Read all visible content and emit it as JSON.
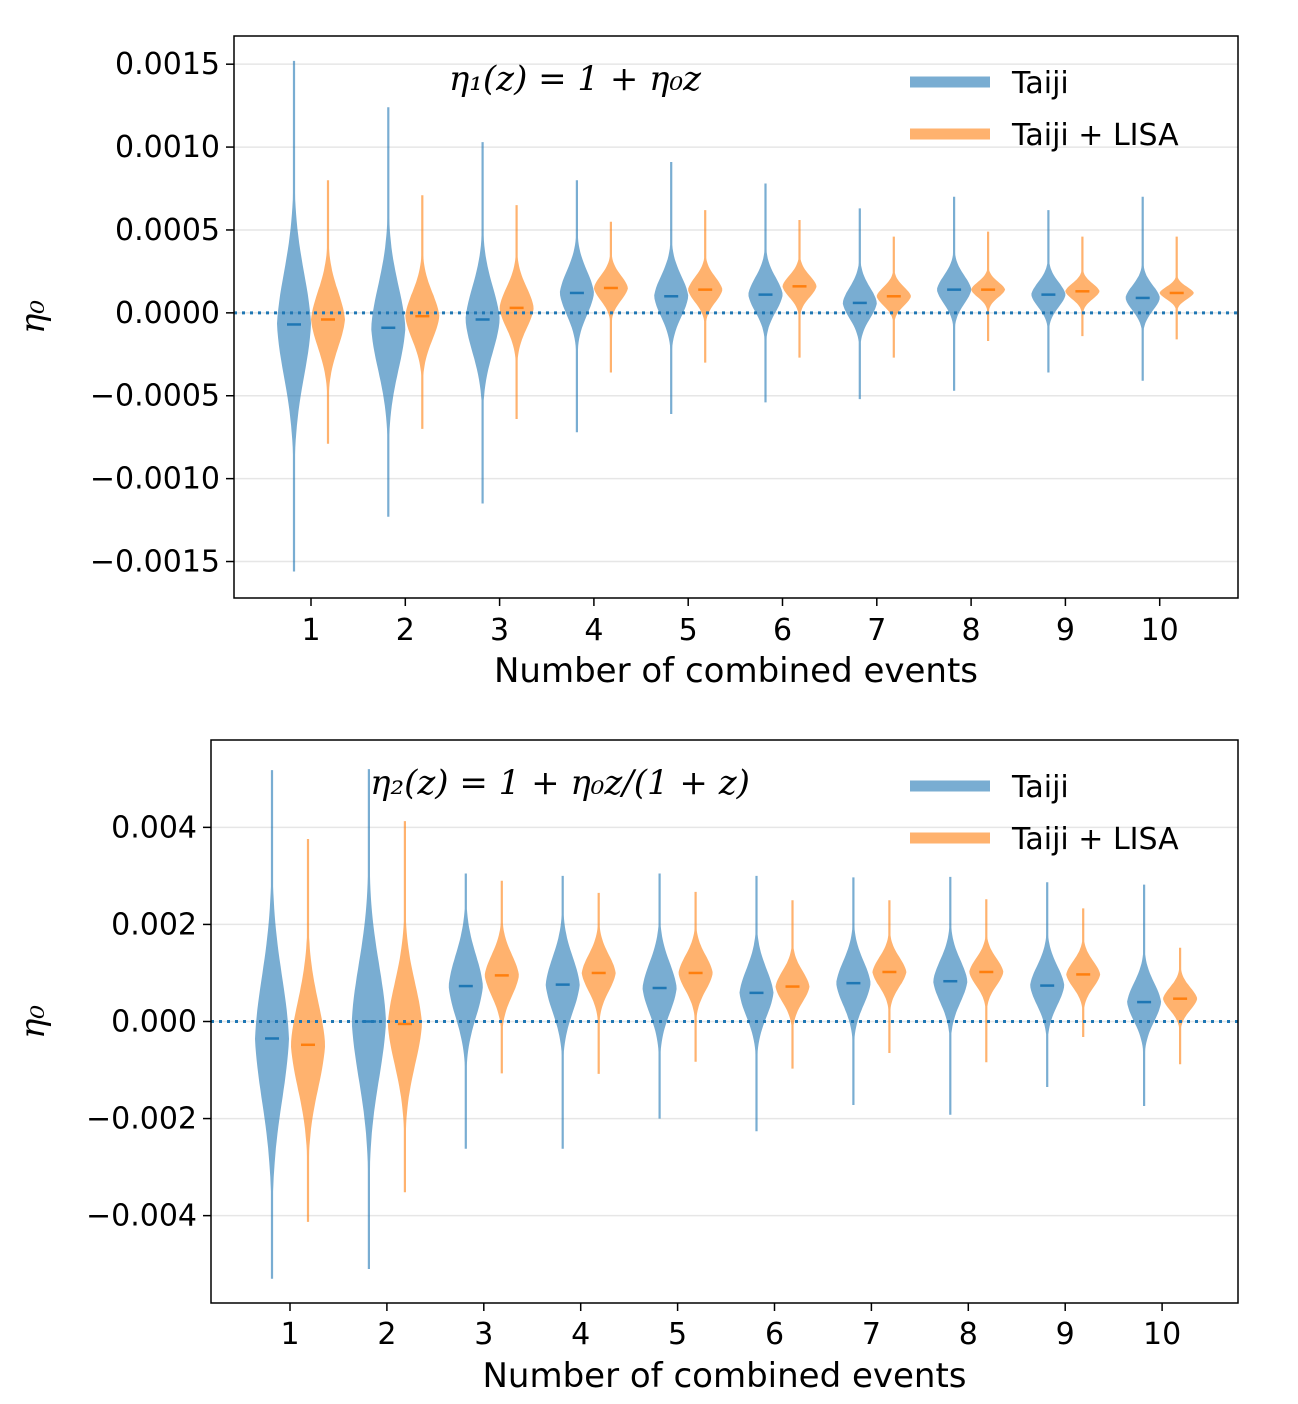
{
  "chart_data": [
    {
      "type": "violin",
      "annotation": "η₁(z) = 1 + η₀z",
      "xlabel": "Number of combined events",
      "ylabel": "η₀",
      "categories": [
        "1",
        "2",
        "3",
        "4",
        "5",
        "6",
        "7",
        "8",
        "9",
        "10"
      ],
      "ylim": [
        -0.00172,
        0.00167
      ],
      "yticks": [
        0.0015,
        0.001,
        0.0005,
        0.0,
        -0.0005,
        -0.001,
        -0.0015
      ],
      "ytick_labels": [
        "0.0015",
        "0.0010",
        "0.0005",
        "0.0000",
        "−0.0005",
        "−0.0010",
        "−0.0015"
      ],
      "grid": "horizontal",
      "reference_line": 0,
      "legend_position": "top-right",
      "series": [
        {
          "name": "Taiji",
          "color": "#1f77b4",
          "median": [
            -7e-05,
            -9e-05,
            -4e-05,
            0.00012,
            0.0001,
            0.00011,
            6e-05,
            0.00014,
            0.00011,
            9e-05
          ],
          "min": [
            -0.00156,
            -0.00123,
            -0.00115,
            -0.00072,
            -0.00061,
            -0.00054,
            -0.00052,
            -0.00047,
            -0.00036,
            -0.00041
          ],
          "max": [
            0.00152,
            0.00124,
            0.00103,
            0.0008,
            0.00091,
            0.00078,
            0.00063,
            0.0007,
            0.00062,
            0.0007
          ],
          "spread": [
            0.00033,
            0.00027,
            0.00021,
            0.00014,
            0.00013,
            0.00011,
            0.0001,
            9e-05,
            8e-05,
            8e-05
          ]
        },
        {
          "name": "Taiji + LISA",
          "color": "#ff7f0e",
          "median": [
            -4e-05,
            -2e-05,
            3e-05,
            0.00015,
            0.00014,
            0.00016,
            0.0001,
            0.00014,
            0.00013,
            0.00012
          ],
          "min": [
            -0.00079,
            -0.0007,
            -0.00064,
            -0.00036,
            -0.0003,
            -0.00027,
            -0.00027,
            -0.00017,
            -0.00014,
            -0.00016
          ],
          "max": [
            0.0008,
            0.00071,
            0.00065,
            0.00055,
            0.00062,
            0.00056,
            0.00046,
            0.00049,
            0.00046,
            0.00046
          ],
          "spread": [
            0.00018,
            0.00015,
            0.00013,
            8e-05,
            8e-05,
            7e-05,
            6e-05,
            5e-05,
            5e-05,
            4e-05
          ]
        }
      ]
    },
    {
      "type": "violin",
      "annotation": "η₂(z) = 1 + η₀z/(1 + z)",
      "xlabel": "Number of combined events",
      "ylabel": "η₀",
      "categories": [
        "1",
        "2",
        "3",
        "4",
        "5",
        "6",
        "7",
        "8",
        "9",
        "10"
      ],
      "ylim": [
        -0.0058,
        0.0058
      ],
      "yticks": [
        0.004,
        0.002,
        0.0,
        -0.002,
        -0.004
      ],
      "ytick_labels": [
        "0.004",
        "0.002",
        "0.000",
        "−0.002",
        "−0.004"
      ],
      "grid": "horizontal",
      "reference_line": 0,
      "legend_position": "top-right",
      "series": [
        {
          "name": "Taiji",
          "color": "#1f77b4",
          "median": [
            -0.00035,
            0.0,
            0.00073,
            0.00076,
            0.00069,
            0.00059,
            0.00079,
            0.00083,
            0.00074,
            0.0004
          ],
          "min": [
            -0.0053,
            -0.0051,
            -0.00262,
            -0.00262,
            -0.002,
            -0.00226,
            -0.00172,
            -0.00192,
            -0.00135,
            -0.00174
          ],
          "max": [
            0.00518,
            0.0052,
            0.00305,
            0.003,
            0.00305,
            0.003,
            0.00297,
            0.00298,
            0.00287,
            0.00282
          ],
          "spread": [
            0.00135,
            0.00125,
            0.00068,
            0.0006,
            0.00055,
            0.00052,
            0.00048,
            0.00046,
            0.00043,
            0.00042
          ]
        },
        {
          "name": "Taiji + LISA",
          "color": "#ff7f0e",
          "median": [
            -0.00048,
            -5e-05,
            0.00095,
            0.001,
            0.001,
            0.00072,
            0.00102,
            0.00102,
            0.00097,
            0.00047
          ],
          "min": [
            -0.00413,
            -0.00352,
            -0.00107,
            -0.00108,
            -0.00083,
            -0.00097,
            -0.00065,
            -0.00084,
            -0.00032,
            -0.00088
          ],
          "max": [
            0.00376,
            0.00413,
            0.0029,
            0.00265,
            0.00267,
            0.0025,
            0.0025,
            0.00252,
            0.00233,
            0.00152
          ],
          "spread": [
            0.00095,
            0.0009,
            0.00045,
            0.0004,
            0.00038,
            0.00034,
            0.00032,
            0.0003,
            0.00029,
            0.00025
          ]
        }
      ]
    }
  ]
}
